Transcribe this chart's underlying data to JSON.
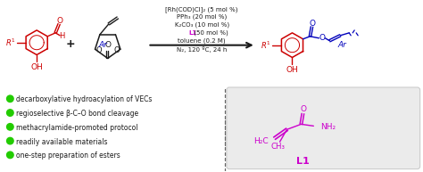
{
  "bg_color": "#ffffff",
  "conditions_line1": "[Rh(COD)Cl]₂ (5 mol %)",
  "conditions_line2": "PPh₃ (20 mol %)",
  "conditions_line3": "K₂CO₃ (10 mol %)",
  "conditions_line4_a": "L1",
  "conditions_line4_b": " (50 mol %)",
  "conditions_line5": "toluene (0.2 M)",
  "conditions_line6": "N₂, 120 ºC, 24 h",
  "bullet_points": [
    "decarboxylative hydroacylation of VECs",
    "regioselective β-C–O bond cleavage",
    "methacrylamide-promoted protocol",
    "readily available materials",
    "one-step preparation of esters"
  ],
  "bullet_color": "#22cc00",
  "text_color": "#1a1a1a",
  "red_color": "#cc0000",
  "blue_color": "#0000bb",
  "purple_color": "#cc00cc",
  "black": "#1a1a1a",
  "gray_box": "#ebebeb",
  "gray_box_edge": "#cccccc",
  "dash_color": "#666666"
}
